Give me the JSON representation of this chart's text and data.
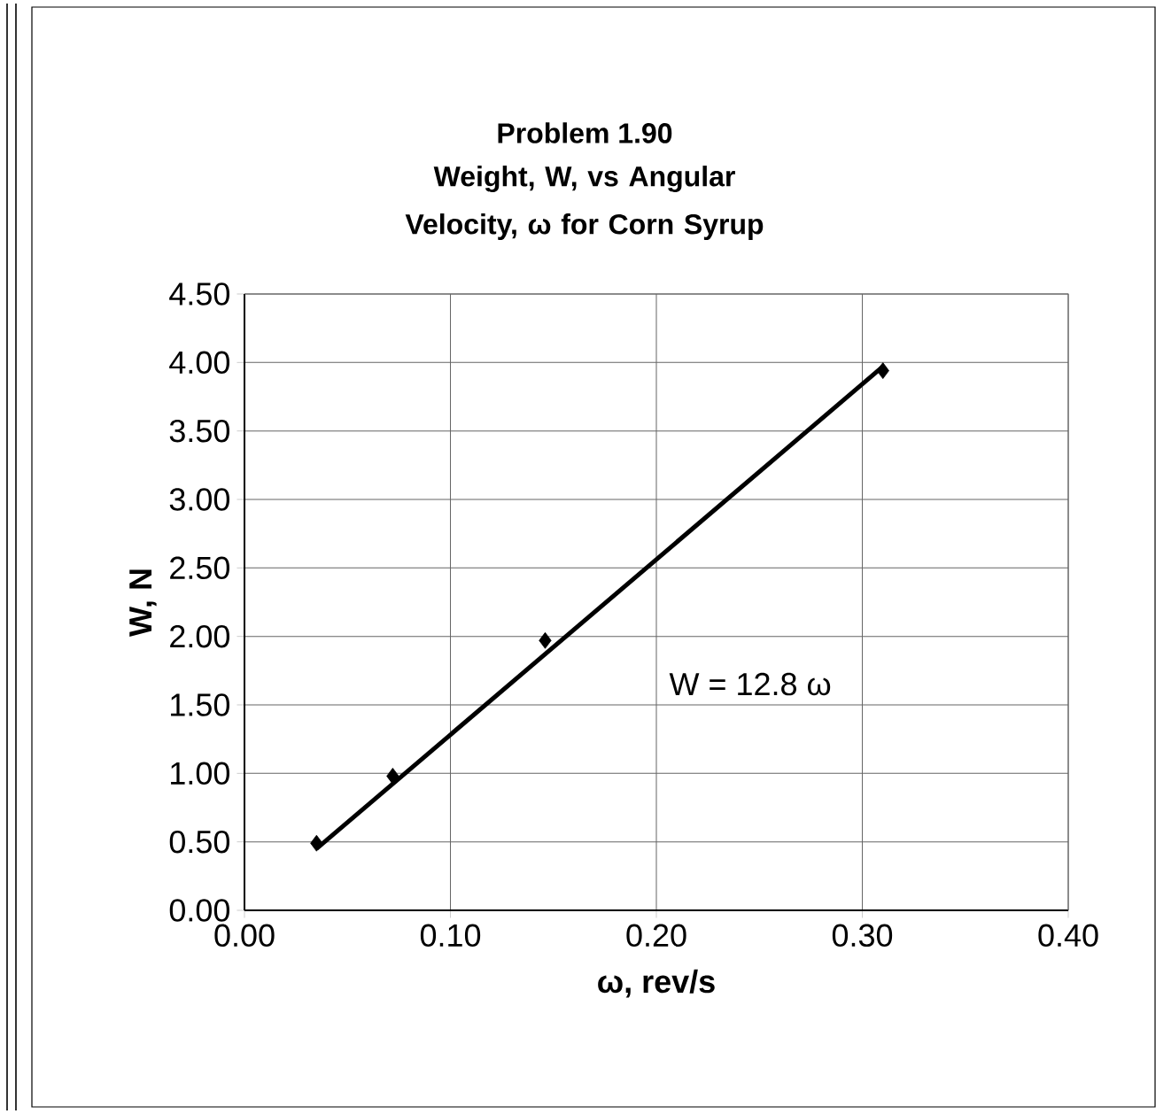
{
  "chart_data": {
    "type": "scatter",
    "title": "Problem 1.90",
    "subtitle": "Weight, W, vs Angular Velocity, ω for Corn Syrup",
    "xlabel": "ω, rev/s",
    "ylabel": "W, N",
    "x": [
      0.035,
      0.072,
      0.146,
      0.31
    ],
    "series": [
      {
        "color": "#000000",
        "marker": "diamond",
        "values": [
          0.49,
          0.98,
          1.97,
          3.94
        ]
      },
      {
        "type": "line",
        "color": "#000000",
        "marker": "none",
        "line_style": "solid",
        "x": [
          0.035,
          0.31
        ],
        "values": [
          0.45,
          3.97
        ]
      }
    ],
    "annotations": [
      "W = 12.8 ω"
    ],
    "xlim": [
      0,
      0.4
    ],
    "ylim": [
      0,
      4.5
    ],
    "xticks": [
      {
        "value": 0,
        "label": "0.00"
      },
      {
        "value": 0.1,
        "label": "0.10"
      },
      {
        "value": 0.2,
        "label": "0.20"
      },
      {
        "value": 0.3,
        "label": "0.30"
      },
      {
        "value": 0.4,
        "label": "0.40"
      }
    ],
    "yticks": [
      {
        "value": 0,
        "label": "0.00"
      },
      {
        "value": 0.5,
        "label": "0.50"
      },
      {
        "value": 1,
        "label": "1.00"
      },
      {
        "value": 1.5,
        "label": "1.50"
      },
      {
        "value": 2,
        "label": "2.00"
      },
      {
        "value": 2.5,
        "label": "2.50"
      },
      {
        "value": 3,
        "label": "3.00"
      },
      {
        "value": 3.5,
        "label": "3.50"
      },
      {
        "value": 4,
        "label": "4.00"
      },
      {
        "value": 4.5,
        "label": "4.50"
      }
    ],
    "grid": true
  }
}
